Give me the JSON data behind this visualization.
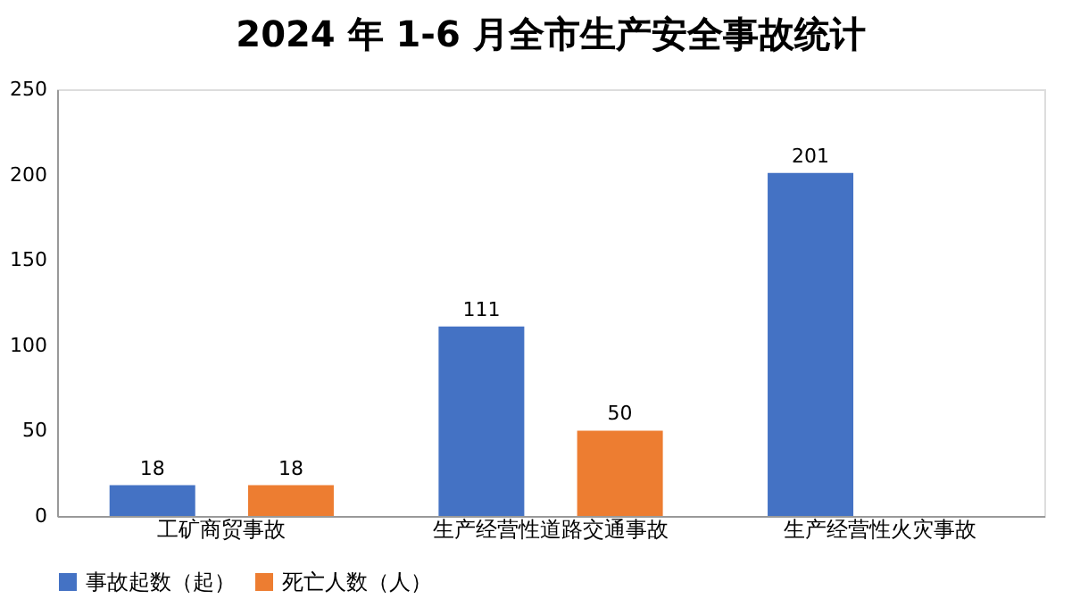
{
  "chart_data": {
    "type": "bar",
    "title": "2024 年 1-6 月全市生产安全事故统计",
    "categories": [
      "工矿商贸事故",
      "生产经营性道路交通事故",
      "生产经营性火灾事故"
    ],
    "series": [
      {
        "name": "事故起数（起）",
        "color": "#4472c4",
        "values": [
          18,
          111,
          201
        ]
      },
      {
        "name": "死亡人数（人）",
        "color": "#ed7d31",
        "values": [
          18,
          50,
          null
        ]
      }
    ],
    "ylim": [
      0,
      250
    ],
    "yticks": [
      0,
      50,
      100,
      150,
      200,
      250
    ],
    "grid": false,
    "legend": "bottom",
    "data_labels": true
  }
}
